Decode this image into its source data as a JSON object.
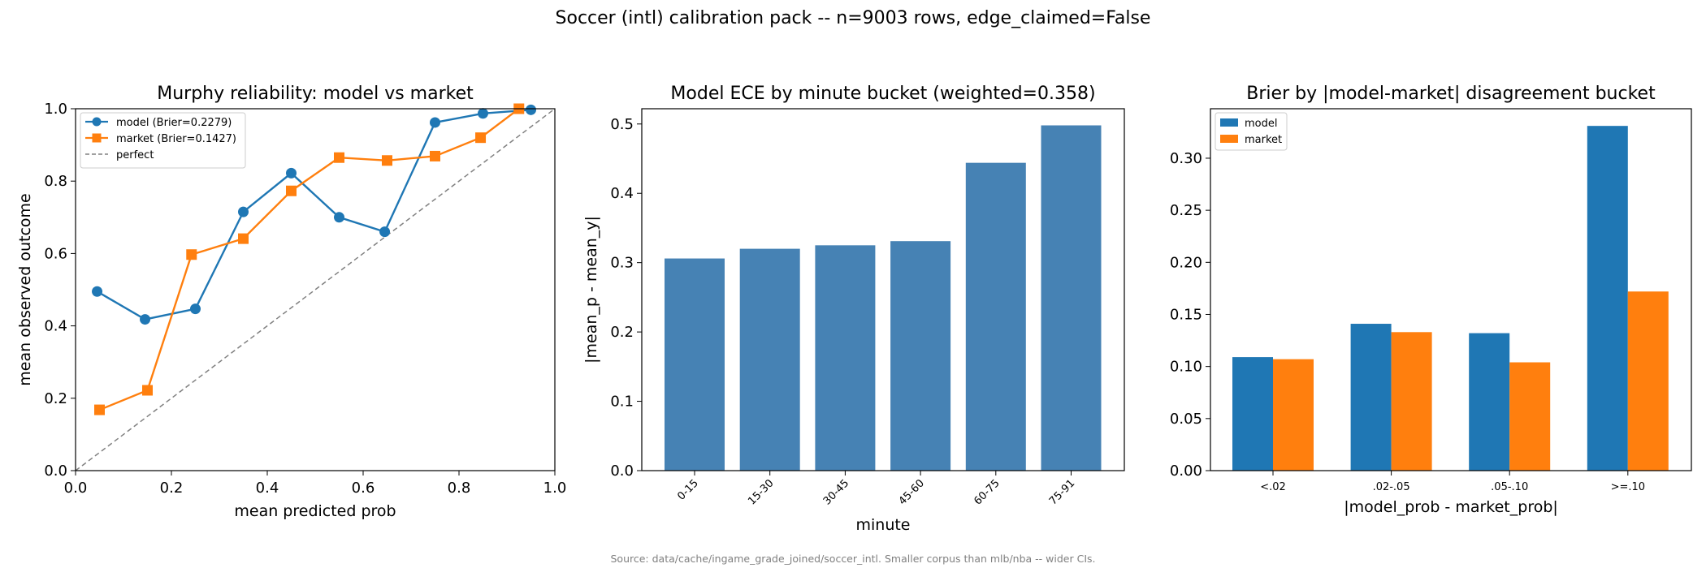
{
  "figure": {
    "suptitle": "Soccer (intl) calibration pack -- n=9003 rows, edge_claimed=False",
    "footnote": "Source: data/cache/ingame_grade_joined/soccer_intl. Smaller corpus than mlb/nba -- wider CIs."
  },
  "colors": {
    "model": "#1f77b4",
    "market": "#ff7f0e",
    "ece_bar": "#4682b4",
    "perfect": "#808080"
  },
  "chart_data": [
    {
      "type": "line",
      "title": "Murphy reliability: model vs market",
      "xlabel": "mean predicted prob",
      "ylabel": "mean observed outcome",
      "xlim": [
        0,
        1
      ],
      "ylim": [
        0,
        1
      ],
      "xticks": [
        "0.0",
        "0.2",
        "0.4",
        "0.6",
        "0.8",
        "1.0"
      ],
      "yticks": [
        "0.0",
        "0.2",
        "0.4",
        "0.6",
        "0.8",
        "1.0"
      ],
      "legend_position": "upper left",
      "series": [
        {
          "name": "model (Brier=0.2279)",
          "marker": "circle",
          "x": [
            0.045,
            0.145,
            0.25,
            0.35,
            0.45,
            0.55,
            0.645,
            0.75,
            0.85,
            0.95
          ],
          "y": [
            0.495,
            0.418,
            0.447,
            0.715,
            0.822,
            0.7,
            0.66,
            0.962,
            0.987,
            0.997
          ]
        },
        {
          "name": "market (Brier=0.1427)",
          "marker": "square",
          "x": [
            0.05,
            0.15,
            0.242,
            0.35,
            0.45,
            0.55,
            0.65,
            0.75,
            0.845,
            0.925
          ],
          "y": [
            0.168,
            0.222,
            0.597,
            0.641,
            0.773,
            0.865,
            0.857,
            0.869,
            0.92,
            1.0
          ]
        },
        {
          "name": "perfect",
          "style": "dashed",
          "x": [
            0,
            1
          ],
          "y": [
            0,
            1
          ]
        }
      ]
    },
    {
      "type": "bar",
      "title": "Model ECE by minute bucket (weighted=0.358)",
      "xlabel": "minute",
      "ylabel": "|mean_p - mean_y|",
      "ylim": [
        0,
        0.522
      ],
      "yticks": [
        "0.0",
        "0.1",
        "0.2",
        "0.3",
        "0.4",
        "0.5"
      ],
      "categories": [
        "0-15",
        "15-30",
        "30-45",
        "45-60",
        "60-75",
        "75-91"
      ],
      "values": [
        0.306,
        0.32,
        0.325,
        0.331,
        0.444,
        0.498
      ]
    },
    {
      "type": "bar",
      "title": "Brier by |model-market| disagreement bucket",
      "xlabel": "|model_prob - market_prob|",
      "ylabel": "",
      "ylim": [
        0,
        0.3475
      ],
      "yticks": [
        "0.00",
        "0.05",
        "0.10",
        "0.15",
        "0.20",
        "0.25",
        "0.30"
      ],
      "legend_position": "upper left",
      "categories": [
        "<.02",
        ".02-.05",
        ".05-.10",
        ">=.10"
      ],
      "series": [
        {
          "name": "model",
          "values": [
            0.109,
            0.141,
            0.132,
            0.331
          ]
        },
        {
          "name": "market",
          "values": [
            0.107,
            0.133,
            0.104,
            0.172
          ]
        }
      ]
    }
  ]
}
